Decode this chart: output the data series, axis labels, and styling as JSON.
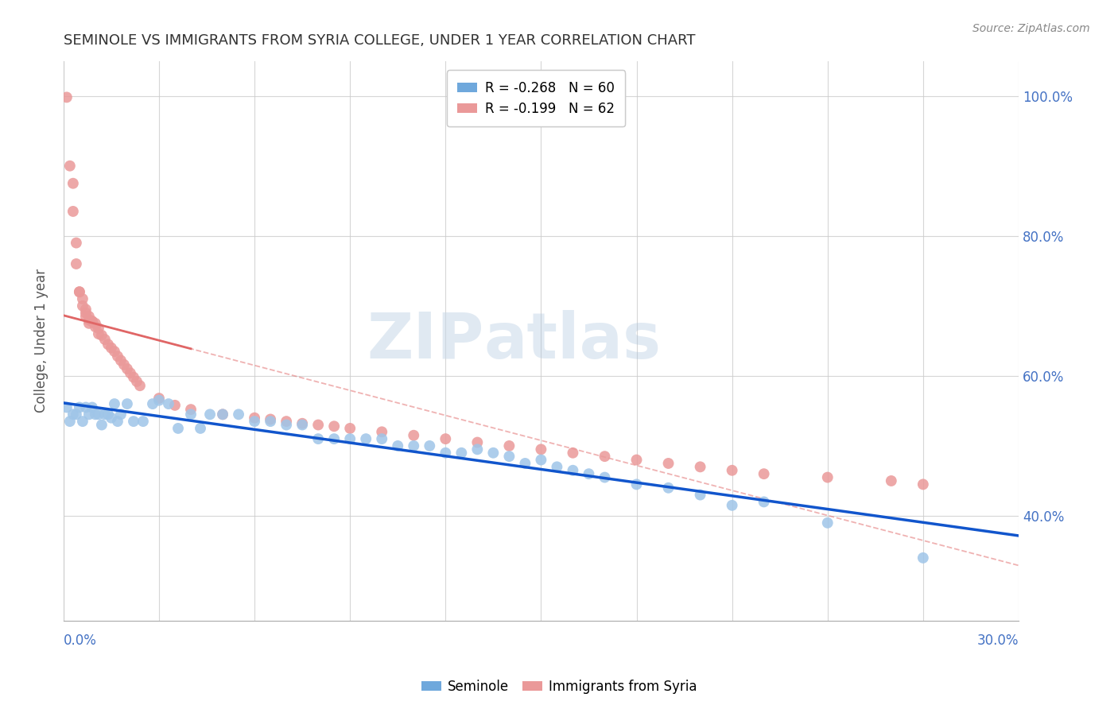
{
  "title": "SEMINOLE VS IMMIGRANTS FROM SYRIA COLLEGE, UNDER 1 YEAR CORRELATION CHART",
  "source": "Source: ZipAtlas.com",
  "ylabel": "College, Under 1 year",
  "watermark_zip": "ZIP",
  "watermark_atlas": "atlas",
  "legend_blue_r": "R = -0.268",
  "legend_blue_n": "N = 60",
  "legend_pink_r": "R = -0.199",
  "legend_pink_n": "N = 62",
  "blue_scatter_color": "#9fc5e8",
  "pink_scatter_color": "#ea9999",
  "blue_line_color": "#1155cc",
  "pink_line_color": "#e06666",
  "dashed_line_color": "#e06666",
  "xmin": 0.0,
  "xmax": 0.3,
  "ymin": 0.25,
  "ymax": 1.05,
  "yticks": [
    0.4,
    0.6,
    0.8,
    1.0
  ],
  "ytick_labels": [
    "40.0%",
    "60.0%",
    "80.0%",
    "100.0%"
  ],
  "seminole_x": [
    0.001,
    0.002,
    0.003,
    0.004,
    0.005,
    0.006,
    0.007,
    0.008,
    0.009,
    0.01,
    0.011,
    0.012,
    0.013,
    0.014,
    0.015,
    0.016,
    0.017,
    0.018,
    0.02,
    0.022,
    0.025,
    0.028,
    0.03,
    0.033,
    0.036,
    0.04,
    0.043,
    0.046,
    0.05,
    0.055,
    0.06,
    0.065,
    0.07,
    0.075,
    0.08,
    0.085,
    0.09,
    0.095,
    0.1,
    0.105,
    0.11,
    0.115,
    0.12,
    0.125,
    0.13,
    0.135,
    0.14,
    0.145,
    0.15,
    0.155,
    0.16,
    0.165,
    0.17,
    0.18,
    0.19,
    0.2,
    0.21,
    0.22,
    0.24,
    0.27
  ],
  "seminole_y": [
    0.555,
    0.535,
    0.545,
    0.545,
    0.555,
    0.535,
    0.555,
    0.545,
    0.555,
    0.545,
    0.545,
    0.53,
    0.545,
    0.545,
    0.54,
    0.56,
    0.535,
    0.545,
    0.56,
    0.535,
    0.535,
    0.56,
    0.565,
    0.56,
    0.525,
    0.545,
    0.525,
    0.545,
    0.545,
    0.545,
    0.535,
    0.535,
    0.53,
    0.53,
    0.51,
    0.51,
    0.51,
    0.51,
    0.51,
    0.5,
    0.5,
    0.5,
    0.49,
    0.49,
    0.495,
    0.49,
    0.485,
    0.475,
    0.48,
    0.47,
    0.465,
    0.46,
    0.455,
    0.445,
    0.44,
    0.43,
    0.415,
    0.42,
    0.39,
    0.34
  ],
  "syria_x": [
    0.001,
    0.002,
    0.003,
    0.003,
    0.004,
    0.004,
    0.005,
    0.005,
    0.006,
    0.006,
    0.007,
    0.007,
    0.007,
    0.008,
    0.008,
    0.008,
    0.009,
    0.009,
    0.01,
    0.01,
    0.011,
    0.011,
    0.012,
    0.013,
    0.014,
    0.015,
    0.016,
    0.017,
    0.018,
    0.019,
    0.02,
    0.021,
    0.022,
    0.023,
    0.024,
    0.03,
    0.035,
    0.04,
    0.05,
    0.06,
    0.065,
    0.07,
    0.075,
    0.08,
    0.085,
    0.09,
    0.1,
    0.11,
    0.12,
    0.13,
    0.14,
    0.15,
    0.16,
    0.17,
    0.18,
    0.19,
    0.2,
    0.21,
    0.22,
    0.24,
    0.26,
    0.27
  ],
  "syria_y": [
    0.998,
    0.9,
    0.875,
    0.835,
    0.79,
    0.76,
    0.72,
    0.72,
    0.71,
    0.7,
    0.69,
    0.695,
    0.685,
    0.685,
    0.68,
    0.675,
    0.678,
    0.678,
    0.675,
    0.67,
    0.668,
    0.66,
    0.658,
    0.652,
    0.645,
    0.64,
    0.635,
    0.628,
    0.622,
    0.616,
    0.61,
    0.604,
    0.598,
    0.592,
    0.586,
    0.568,
    0.558,
    0.552,
    0.545,
    0.54,
    0.538,
    0.535,
    0.532,
    0.53,
    0.528,
    0.525,
    0.52,
    0.515,
    0.51,
    0.505,
    0.5,
    0.495,
    0.49,
    0.485,
    0.48,
    0.475,
    0.47,
    0.465,
    0.46,
    0.455,
    0.45,
    0.445
  ],
  "pink_line_x_end": 0.04,
  "blue_line_color_legend": "#6fa8dc",
  "pink_line_color_legend": "#ea9999"
}
